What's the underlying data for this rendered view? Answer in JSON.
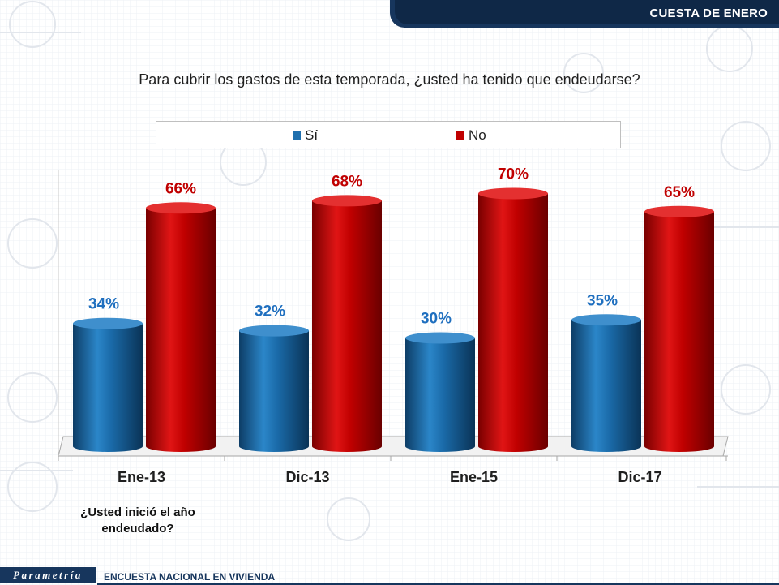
{
  "header": {
    "title": "CUESTA DE ENERO"
  },
  "question": "Para cubrir los gastos de esta temporada, ¿usted ha tenido que endeudarse?",
  "colors": {
    "si": "#1f6fae",
    "no": "#c00000",
    "brand": "#17365d"
  },
  "chart_data": {
    "type": "bar",
    "title": "Para cubrir los gastos de esta temporada, ¿usted ha tenido que endeudarse?",
    "categories": [
      "Ene-13",
      "Dic-13",
      "Ene-15",
      "Dic-17"
    ],
    "series": [
      {
        "name": "Sí",
        "values": [
          34,
          32,
          30,
          35
        ],
        "labels": [
          "34%",
          "32%",
          "30%",
          "35%"
        ]
      },
      {
        "name": "No",
        "values": [
          66,
          68,
          70,
          65
        ],
        "labels": [
          "66%",
          "68%",
          "70%",
          "65%"
        ]
      }
    ],
    "ylim": [
      0,
      100
    ],
    "xlabel": "",
    "ylabel": "",
    "legend": "top",
    "grid": false
  },
  "legend": {
    "si": "Sí",
    "no": "No"
  },
  "subquestion": {
    "line1": "¿Usted inició el año",
    "line2": "endeudado?"
  },
  "footer": {
    "logo": "Parametría",
    "survey": "ENCUESTA NACIONAL EN VIVIENDA"
  }
}
